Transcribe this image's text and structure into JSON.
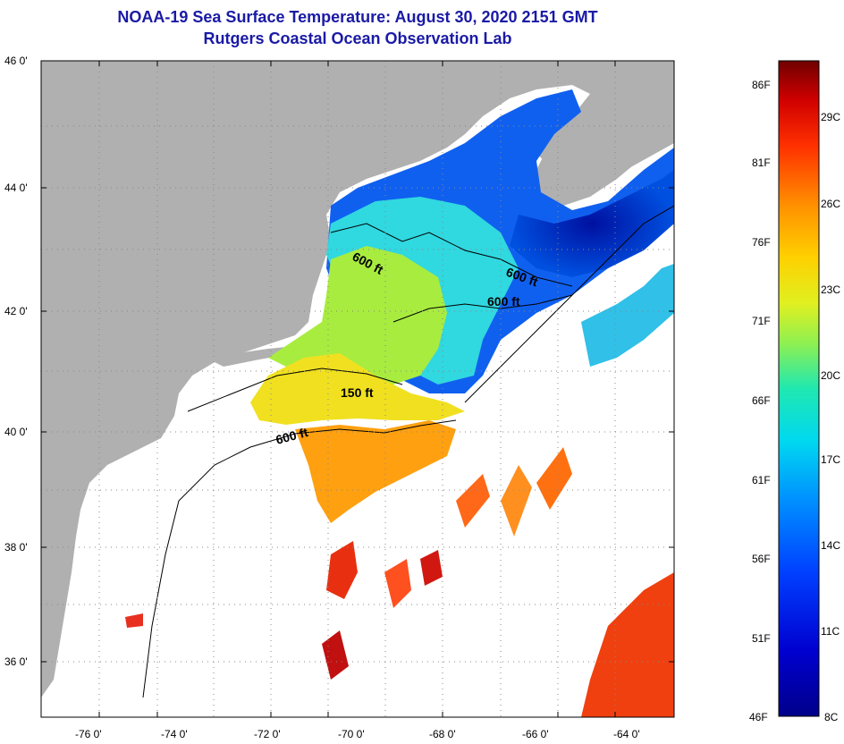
{
  "title": {
    "line1": "NOAA-19 Sea Surface Temperature:  August 30, 2020 2151 GMT",
    "line2": "Rutgers Coastal Ocean Observation Lab"
  },
  "axes": {
    "lon_ticks": [
      "-76 0'",
      "-74 0'",
      "-72 0'",
      "-70 0'",
      "-68 0'",
      "-66 0'",
      "-64 0'"
    ],
    "lat_ticks": [
      "46 0'",
      "44 0'",
      "42 0'",
      "40 0'",
      "38 0'",
      "36 0'"
    ]
  },
  "contours": [
    {
      "label": "600 ft"
    },
    {
      "label": "600 ft"
    },
    {
      "label": "600 ft"
    },
    {
      "label": "150 ft"
    },
    {
      "label": "600 ft"
    }
  ],
  "colorbar": {
    "fahrenheit": [
      "86F",
      "81F",
      "76F",
      "71F",
      "66F",
      "61F",
      "56F",
      "51F",
      "46F"
    ],
    "celsius": [
      "29C",
      "26C",
      "23C",
      "20C",
      "17C",
      "14C",
      "11C",
      "8C"
    ]
  },
  "colors": {
    "land": "#b0b0b0",
    "title": "#1a1aa6",
    "cold": "#0a0a7a",
    "warm": "#7a0a0a"
  }
}
